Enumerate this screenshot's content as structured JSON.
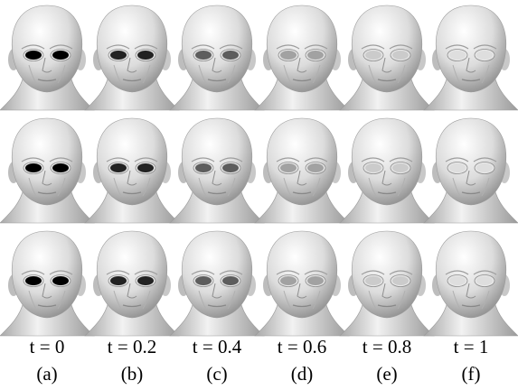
{
  "columns": [
    {
      "parameter": "t = 0",
      "caption": "(a)"
    },
    {
      "parameter": "t = 0.2",
      "caption": "(b)"
    },
    {
      "parameter": "t = 0.4",
      "caption": "(c)"
    },
    {
      "parameter": "t = 0.6",
      "caption": "(d)"
    },
    {
      "parameter": "t = 0.8",
      "caption": "(e)"
    },
    {
      "parameter": "t = 1",
      "caption": "(f)"
    }
  ]
}
